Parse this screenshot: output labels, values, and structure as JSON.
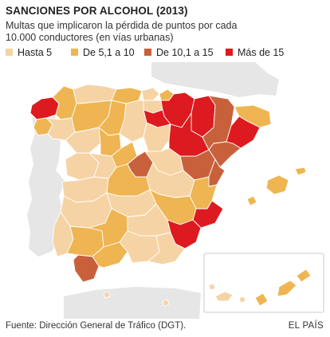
{
  "title": "SANCIONES POR ALCOHOL (2013)",
  "subtitle": "Multas que implicaron la pérdida de puntos por cada 10.000 conductores (en vías urbanas)",
  "legend": [
    {
      "label": "Hasta 5",
      "color": "#f6d3a4"
    },
    {
      "label": "De 5,1 a 10",
      "color": "#efb552"
    },
    {
      "label": "De 10,1 a 15",
      "color": "#c8613b"
    },
    {
      "label": "Más de 15",
      "color": "#dd1a1f"
    }
  ],
  "source": "Fuente: Dirección General de Tráfico (DGT).",
  "brand": "EL PAÍS"
}
